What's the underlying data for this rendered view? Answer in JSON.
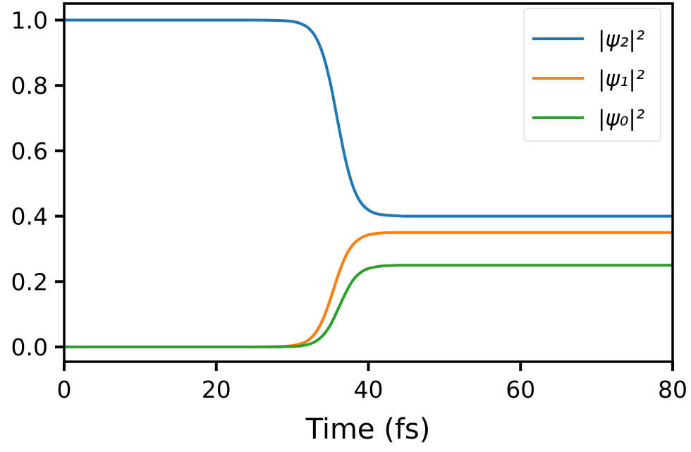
{
  "chart_data": {
    "type": "line",
    "title": "",
    "xlabel": "Time (fs)",
    "ylabel": "",
    "xlim": [
      0,
      80
    ],
    "ylim": [
      -0.05,
      1.05
    ],
    "xticks": [
      0,
      20,
      40,
      60,
      80
    ],
    "xtick_labels": [
      "0",
      "20",
      "40",
      "60",
      "80"
    ],
    "yticks": [
      0.0,
      0.2,
      0.4,
      0.6,
      0.8,
      1.0
    ],
    "ytick_labels": [
      "0.0",
      "0.2",
      "0.4",
      "0.6",
      "0.8",
      "1.0"
    ],
    "grid": false,
    "legend_position": "top-right",
    "x": [
      0,
      10,
      20,
      25,
      28,
      29,
      30,
      31,
      32,
      33,
      34,
      35,
      36,
      37,
      38,
      39,
      40,
      41,
      42,
      43,
      44,
      45,
      50,
      60,
      70,
      80
    ],
    "series": [
      {
        "name": "|ψ₂|²",
        "color": "#1f77b4",
        "values": [
          1.0,
          1.0,
          1.0,
          1.0,
          0.999,
          0.998,
          0.996,
          0.99,
          0.978,
          0.951,
          0.897,
          0.807,
          0.687,
          0.572,
          0.489,
          0.442,
          0.419,
          0.408,
          0.404,
          0.402,
          0.401,
          0.4,
          0.4,
          0.4,
          0.4,
          0.4
        ]
      },
      {
        "name": "|ψ₁|²",
        "color": "#ff7f0e",
        "values": [
          0.0,
          0.0,
          0.0,
          0.0,
          0.001,
          0.002,
          0.004,
          0.009,
          0.019,
          0.042,
          0.083,
          0.146,
          0.218,
          0.277,
          0.314,
          0.333,
          0.343,
          0.347,
          0.349,
          0.35,
          0.35,
          0.35,
          0.35,
          0.35,
          0.35,
          0.35
        ]
      },
      {
        "name": "|ψ₀|²",
        "color": "#2ca02c",
        "values": [
          0.0,
          0.0,
          0.0,
          0.0,
          0.0,
          0.001,
          0.001,
          0.003,
          0.007,
          0.016,
          0.035,
          0.067,
          0.115,
          0.165,
          0.205,
          0.228,
          0.24,
          0.245,
          0.248,
          0.249,
          0.25,
          0.25,
          0.25,
          0.25,
          0.25,
          0.25
        ]
      }
    ]
  }
}
